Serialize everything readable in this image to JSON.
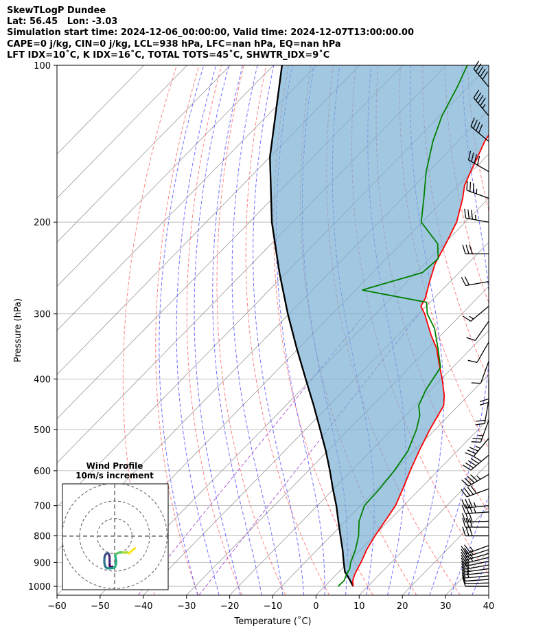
{
  "header": {
    "line1": "SkewTLogP Dundee",
    "line2": "Lat: 56.45   Lon: -3.03",
    "line3": "Simulation start time: 2024-12-06_00:00:00, Valid time: 2024-12-07T13:00:00.00",
    "line4": "CAPE=0 j/kg, CIN=0 j/kg, LCL=938 hPa, LFC=nan hPa, EQ=nan hPa",
    "line5": "LFT IDX=10˚C, K IDX=16˚C, TOTAL TOTS=45˚C, SHWTR_IDX=9˚C"
  },
  "colors": {
    "temperature": "#ff0000",
    "dewpoint": "#008000",
    "parcel": "#000000",
    "cape_fill": "#7bafd4",
    "dry_adiabat": "#ff4d4d",
    "moist_adiabat": "#3333ff",
    "mixing_ratio": "#9933cc",
    "isotherm": "#999999"
  },
  "chart_data": [
    {
      "type": "line",
      "title": "",
      "xlabel": "Temperature (˚C)",
      "ylabel": "Pressure (hPa)",
      "xlim": [
        -60,
        40
      ],
      "ylim": [
        1040,
        100
      ],
      "yscale": "log",
      "grid": true,
      "x_ticks": [
        -60,
        -50,
        -40,
        -30,
        -20,
        -10,
        0,
        10,
        20,
        30,
        40
      ],
      "y_ticks": [
        1000,
        900,
        800,
        700,
        600,
        500,
        400,
        300,
        200,
        100
      ],
      "series": [
        {
          "key": "temperature",
          "pressure": [
            1000,
            975,
            950,
            925,
            900,
            850,
            800,
            750,
            700,
            650,
            600,
            550,
            500,
            470,
            450,
            430,
            400,
            370,
            350,
            330,
            300,
            290,
            280,
            260,
            240,
            220,
            200,
            180,
            170,
            160,
            150,
            140,
            125,
            110,
            100
          ],
          "values": [
            6.6,
            5.2,
            4.3,
            3.6,
            3.0,
            1.4,
            0.2,
            -0.8,
            -1.9,
            -4.0,
            -6.4,
            -8.8,
            -11.2,
            -12.5,
            -13.4,
            -15.6,
            -19.8,
            -24.6,
            -27.9,
            -32.2,
            -38.6,
            -41.2,
            -42.0,
            -44.8,
            -47.6,
            -49.6,
            -52.0,
            -56.0,
            -58.5,
            -60.2,
            -61.9,
            -63.8,
            -65.8,
            -67.5,
            -68.4
          ]
        },
        {
          "key": "dewpoint",
          "pressure": [
            1000,
            975,
            950,
            925,
            900,
            850,
            800,
            750,
            700,
            650,
            600,
            550,
            500,
            470,
            450,
            420,
            380,
            350,
            320,
            300,
            285,
            270,
            250,
            235,
            220,
            200,
            180,
            160,
            140,
            125,
            110,
            100
          ],
          "values": [
            3.1,
            3.2,
            2.4,
            1.8,
            0.6,
            -1.2,
            -3.6,
            -6.8,
            -9.1,
            -9.4,
            -10.1,
            -11.4,
            -14.3,
            -16.7,
            -19.2,
            -21.1,
            -22.8,
            -27.6,
            -33.0,
            -38.0,
            -40.8,
            -58.5,
            -48.5,
            -48.0,
            -51.5,
            -60.2,
            -65.0,
            -70.5,
            -75.8,
            -79.5,
            -82.5,
            -85.1
          ]
        },
        {
          "key": "parcel",
          "pressure": [
            1000,
            975,
            950,
            938,
            900,
            850,
            800,
            750,
            700,
            650,
            600,
            550,
            500,
            450,
            400,
            350,
            300,
            250,
            200,
            150,
            100
          ],
          "values": [
            6.6,
            4.6,
            2.5,
            1.4,
            -1.0,
            -4.2,
            -7.8,
            -11.6,
            -15.6,
            -20.2,
            -25.0,
            -30.4,
            -36.6,
            -43.5,
            -51.4,
            -60.3,
            -70.3,
            -81.6,
            -94.8,
            -110.0,
            -128.0
          ]
        }
      ],
      "wind_barbs": {
        "pressure": [
          1000,
          985,
          970,
          955,
          940,
          925,
          910,
          895,
          880,
          865,
          850,
          835,
          800,
          770,
          750,
          720,
          700,
          650,
          610,
          560,
          520,
          480,
          440,
          400,
          370,
          340,
          310,
          290,
          260,
          230,
          200,
          180,
          160,
          140,
          125,
          110
        ],
        "speed_kt": [
          10,
          10,
          10,
          15,
          15,
          20,
          20,
          20,
          25,
          25,
          25,
          25,
          30,
          30,
          30,
          35,
          35,
          40,
          45,
          50,
          35,
          25,
          20,
          20,
          10,
          10,
          10,
          15,
          20,
          30,
          35,
          35,
          40,
          40,
          45,
          50
        ],
        "direction_deg": [
          270,
          268,
          266,
          265,
          264,
          262,
          260,
          258,
          256,
          254,
          252,
          250,
          270,
          270,
          268,
          266,
          264,
          250,
          240,
          230,
          220,
          200,
          190,
          180,
          200,
          210,
          215,
          230,
          260,
          270,
          280,
          290,
          300,
          310,
          320,
          320
        ]
      }
    },
    {
      "type": "line",
      "title": "Wind Profile",
      "subtitle": "10m/s increment",
      "ring_increment_ms": 10,
      "u": [
        -3.2,
        -4.2,
        -5.8,
        -6.4,
        -6.6,
        -6.7,
        -6.8,
        -6.9,
        -7.0,
        -7.6,
        -8.5,
        -9.8,
        -11.2,
        -12.6,
        -13.6,
        -13.9,
        -14.0,
        -13.8,
        -13.3,
        -12.2,
        -10.5,
        -8.5,
        -7.0,
        -6.0,
        -4.0,
        -1.0,
        0.6,
        2.2,
        2.0,
        0.8,
        1.9,
        4.2,
        6.0,
        7.5,
        9.2,
        11.4,
        13.3,
        15.2,
        17.0,
        18.3,
        19.2,
        22.0,
        24.5,
        26.0,
        27.2,
        27.9
      ],
      "v": [
        -41.5,
        -42.6,
        -42.9,
        -42.5,
        -40.2,
        -37.0,
        -33.5,
        -30.5,
        -27.5,
        -25.0,
        -23.8,
        -23.4,
        -23.7,
        -25.4,
        -28.0,
        -31.0,
        -34.0,
        -37.0,
        -39.7,
        -42.0,
        -43.6,
        -43.8,
        -43.7,
        -43.7,
        -43.6,
        -43.3,
        -41.9,
        -36.9,
        -32.9,
        -26.5,
        -24.5,
        -23.0,
        -22.4,
        -22.3,
        -22.1,
        -22.3,
        -22.5,
        -22.4,
        -22.0,
        -22.5,
        -23.6,
        -21.4,
        -18.8,
        -17.7,
        -17.0,
        -16.6
      ]
    }
  ]
}
